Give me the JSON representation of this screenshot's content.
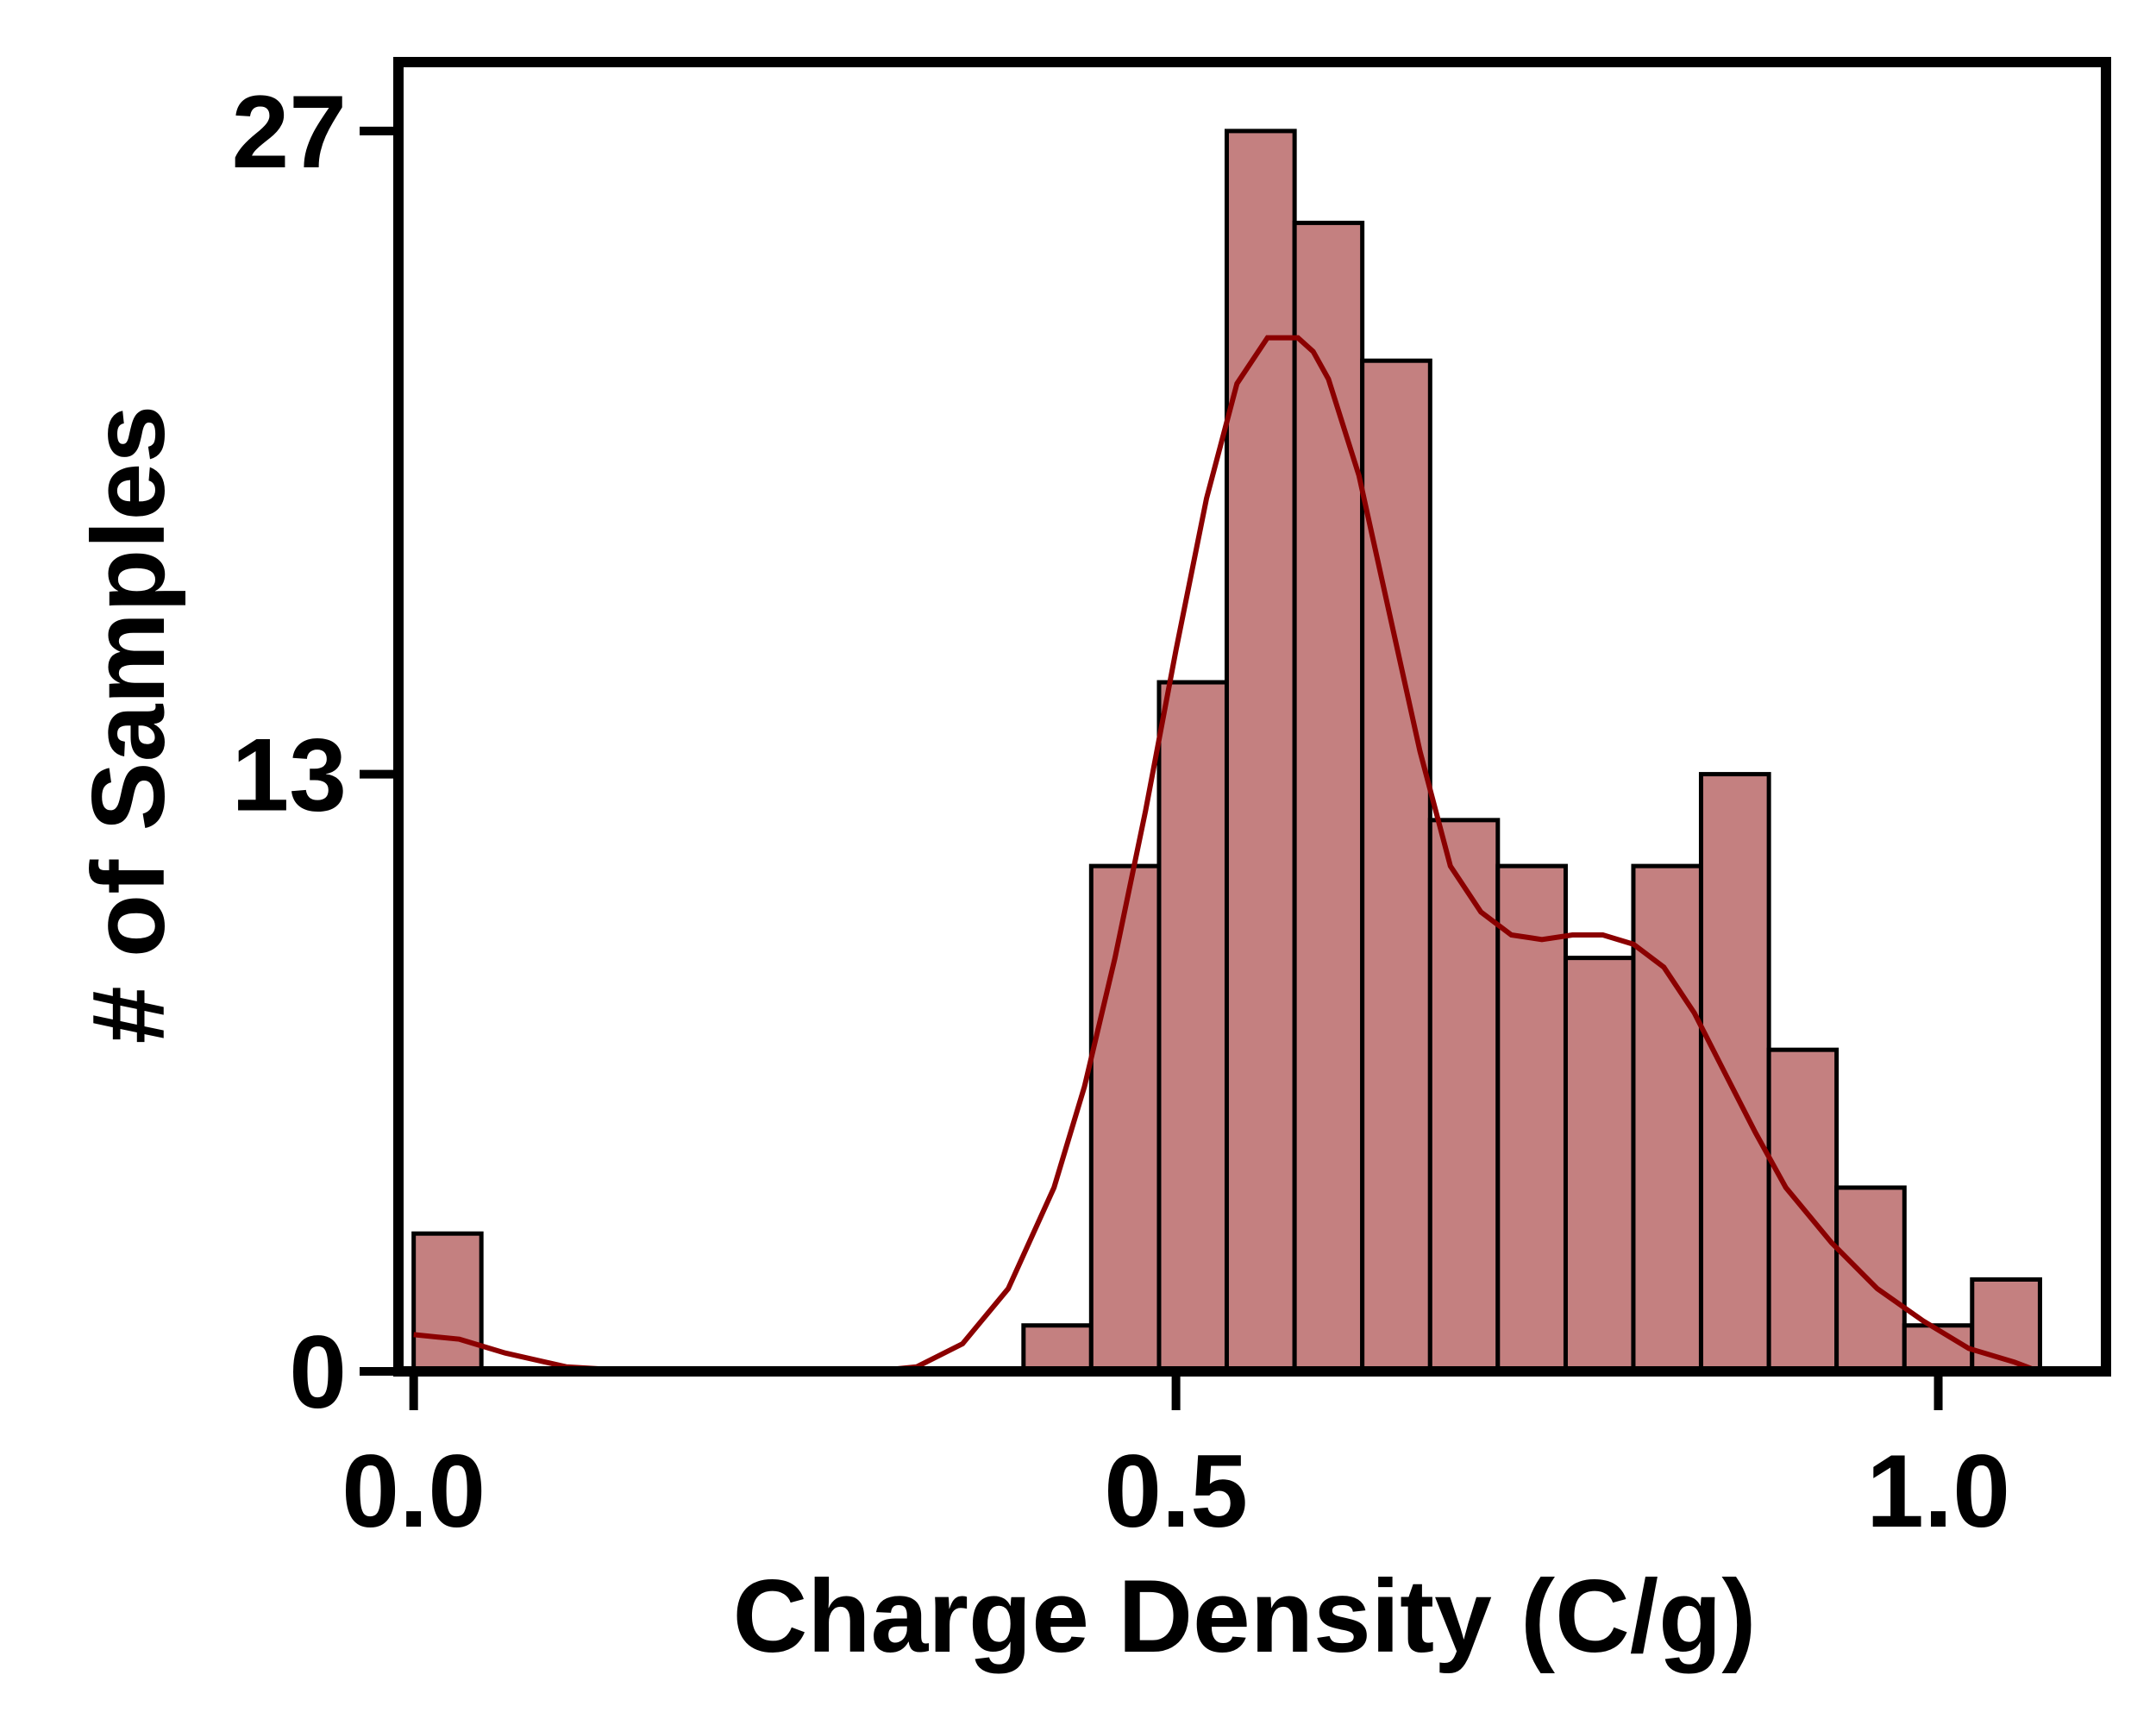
{
  "chart_data": {
    "type": "bar",
    "title": "",
    "xlabel": "Charge Density (C/g)",
    "ylabel": "# of Samples",
    "xlim": [
      -0.01,
      1.11
    ],
    "ylim": [
      0,
      28.5
    ],
    "x_ticks": [
      0.0,
      0.5,
      1.0
    ],
    "x_tick_labels": [
      "0.0",
      "0.5",
      "1.0"
    ],
    "y_ticks": [
      0,
      13,
      27
    ],
    "y_tick_labels": [
      "0",
      "13",
      "27"
    ],
    "bin_width": 0.0444,
    "bins": [
      {
        "x0": 0.0,
        "x1": 0.0444,
        "count": 3
      },
      {
        "x0": 0.4,
        "x1": 0.4444,
        "count": 1
      },
      {
        "x0": 0.4444,
        "x1": 0.4889,
        "count": 11
      },
      {
        "x0": 0.4889,
        "x1": 0.5333,
        "count": 15
      },
      {
        "x0": 0.5333,
        "x1": 0.5778,
        "count": 27
      },
      {
        "x0": 0.5778,
        "x1": 0.6222,
        "count": 25
      },
      {
        "x0": 0.6222,
        "x1": 0.6667,
        "count": 22
      },
      {
        "x0": 0.6667,
        "x1": 0.7111,
        "count": 12
      },
      {
        "x0": 0.7111,
        "x1": 0.7556,
        "count": 11
      },
      {
        "x0": 0.7556,
        "x1": 0.8,
        "count": 9
      },
      {
        "x0": 0.8,
        "x1": 0.8444,
        "count": 11
      },
      {
        "x0": 0.8444,
        "x1": 0.8889,
        "count": 13
      },
      {
        "x0": 0.8889,
        "x1": 0.9333,
        "count": 7
      },
      {
        "x0": 0.9333,
        "x1": 0.9778,
        "count": 4
      },
      {
        "x0": 0.9778,
        "x1": 1.0222,
        "count": 1
      },
      {
        "x0": 1.0222,
        "x1": 1.0667,
        "count": 2
      }
    ],
    "kde_curve": {
      "x": [
        0.0,
        0.03,
        0.06,
        0.1,
        0.15,
        0.2,
        0.25,
        0.3,
        0.33,
        0.36,
        0.39,
        0.42,
        0.44,
        0.46,
        0.48,
        0.5,
        0.52,
        0.54,
        0.56,
        0.58,
        0.59,
        0.6,
        0.62,
        0.64,
        0.66,
        0.68,
        0.7,
        0.72,
        0.74,
        0.76,
        0.78,
        0.8,
        0.82,
        0.84,
        0.86,
        0.88,
        0.9,
        0.93,
        0.96,
        0.99,
        1.02,
        1.05,
        1.066
      ],
      "y": [
        0.8,
        0.7,
        0.4,
        0.1,
        0.0,
        0.0,
        0.0,
        0.0,
        0.1,
        0.6,
        1.8,
        4.0,
        6.2,
        9.0,
        12.2,
        15.7,
        19.0,
        21.5,
        22.5,
        22.5,
        22.2,
        21.6,
        19.5,
        16.5,
        13.5,
        11.0,
        10.0,
        9.5,
        9.4,
        9.5,
        9.5,
        9.3,
        8.8,
        7.8,
        6.5,
        5.2,
        4.0,
        2.8,
        1.8,
        1.1,
        0.5,
        0.2,
        0.0
      ]
    },
    "colors": {
      "bar_fill": "#c48080",
      "bar_edge": "#000000",
      "kde_line": "#8b0000",
      "axes": "#000000"
    },
    "grid": false,
    "legend": "none"
  }
}
